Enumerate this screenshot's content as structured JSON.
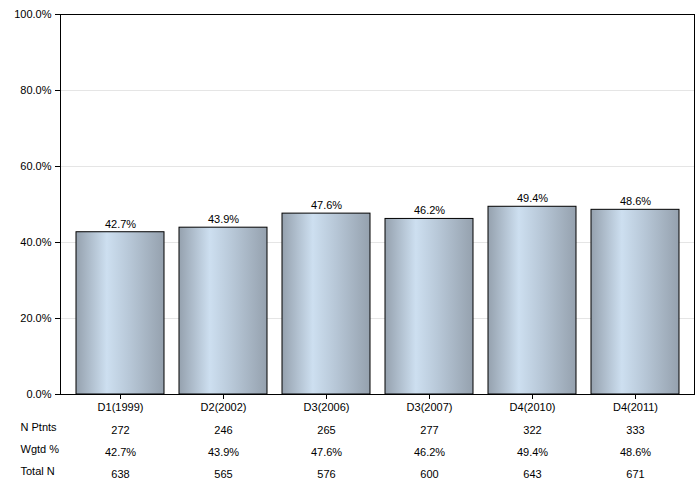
{
  "chart_data": {
    "type": "bar",
    "categories": [
      "D1(1999)",
      "D2(2002)",
      "D3(2006)",
      "D3(2007)",
      "D4(2010)",
      "D4(2011)"
    ],
    "values": [
      42.7,
      43.9,
      47.6,
      46.2,
      49.4,
      48.6
    ],
    "value_labels": [
      "42.7%",
      "43.9%",
      "47.6%",
      "46.2%",
      "49.4%",
      "48.6%"
    ],
    "data_labels": true,
    "color": "#b8c8d8",
    "ylim": [
      0,
      100
    ],
    "yticks": [
      {
        "value": 0,
        "label": "0.0%"
      },
      {
        "value": 20,
        "label": "20.0%"
      },
      {
        "value": 40,
        "label": "40.0%"
      },
      {
        "value": 60,
        "label": "60.0%"
      },
      {
        "value": 80,
        "label": "80.0%"
      },
      {
        "value": 100,
        "label": "100.0%"
      }
    ],
    "grid": true,
    "table": {
      "rows": [
        {
          "label": "N Ptnts",
          "values": [
            272,
            246,
            265,
            277,
            322,
            333
          ]
        },
        {
          "label": "Wgtd %",
          "values": [
            "42.7%",
            "43.9%",
            "47.6%",
            "46.2%",
            "49.4%",
            "48.6%"
          ]
        },
        {
          "label": "Total N",
          "values": [
            638,
            565,
            576,
            600,
            643,
            671
          ]
        }
      ]
    }
  }
}
